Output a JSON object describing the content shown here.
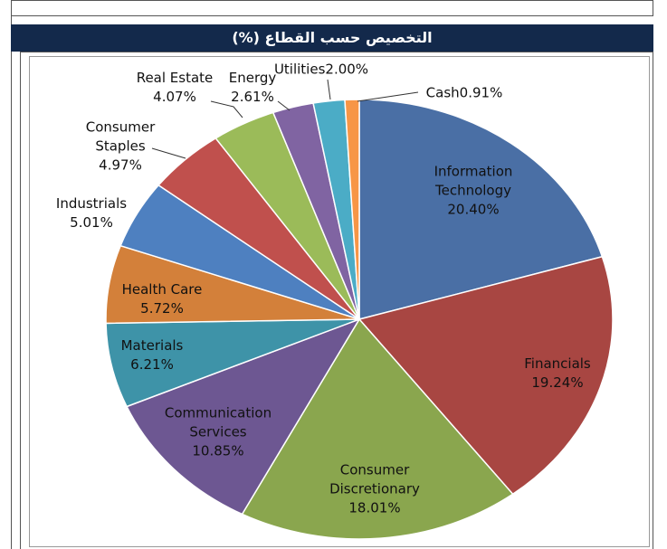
{
  "chart_data": {
    "type": "pie",
    "title": "التخصيص حسب القطاع (%)",
    "categories": [
      "Information Technology",
      "Financials",
      "Consumer Discretionary",
      "Communication Services",
      "Materials",
      "Health Care",
      "Industrials",
      "Consumer Staples",
      "Real Estate",
      "Energy",
      "Utilities",
      "Cash"
    ],
    "values": [
      20.4,
      19.24,
      18.01,
      10.85,
      6.21,
      5.72,
      5.01,
      4.97,
      4.07,
      2.61,
      2.0,
      0.91
    ],
    "value_labels": [
      "20.40%",
      "19.24%",
      "18.01%",
      "10.85%",
      "6.21%",
      "5.72%",
      "5.01%",
      "4.97%",
      "4.07%",
      "2.61%",
      "2.00%",
      "0.91%"
    ],
    "colors": [
      "#4a6fa5",
      "#a84642",
      "#8aa64e",
      "#6d5792",
      "#3e93a8",
      "#d3803a",
      "#4e80c0",
      "#c0504d",
      "#9bbb59",
      "#8064a2",
      "#4bacc6",
      "#f79646"
    ]
  }
}
